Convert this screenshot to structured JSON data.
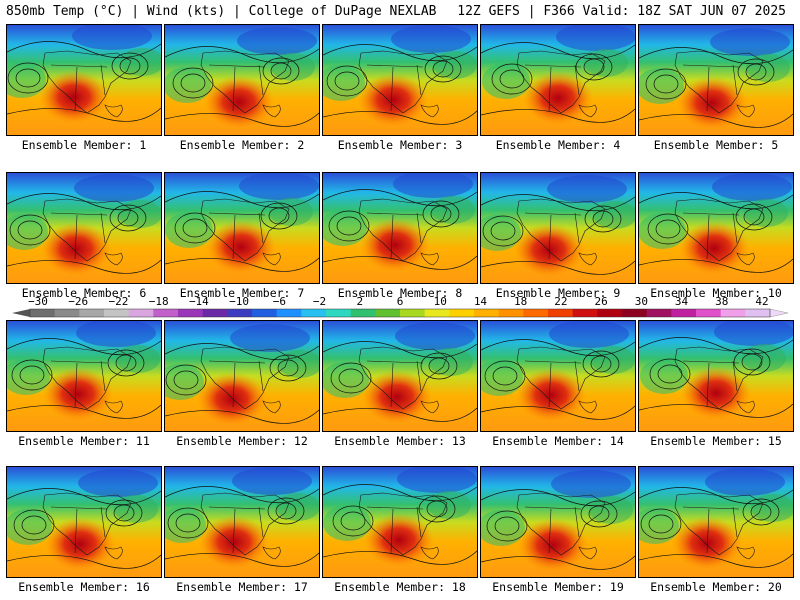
{
  "header": {
    "title": "850mb Temp (°C) | Wind (kts) | College of DuPage NEXLAB",
    "run": "12Z GEFS | F366 Valid: 18Z SAT JUN 07 2025"
  },
  "colorbar": {
    "labels": [
      "−30",
      "−26",
      "−22",
      "−18",
      "−14",
      "−10",
      "−6",
      "−2",
      "2",
      "6",
      "10",
      "14",
      "18",
      "22",
      "26",
      "30",
      "34",
      "38",
      "42"
    ],
    "colors": [
      "#6e6e6e",
      "#8a8a8a",
      "#a8a8a8",
      "#c4c4c4",
      "#d9a6e0",
      "#c060c8",
      "#9a36b8",
      "#6a2aa8",
      "#3c3cc0",
      "#2060e0",
      "#1e90ff",
      "#28c0f0",
      "#2ed8c0",
      "#30c070",
      "#60c030",
      "#a8d820",
      "#e8e820",
      "#ffd000",
      "#ffb000",
      "#ff9000",
      "#ff6a00",
      "#f04000",
      "#d01010",
      "#b00010",
      "#8c0020",
      "#a01060",
      "#c020a0",
      "#e050c8",
      "#f0a0e8",
      "#e0c0f0"
    ]
  },
  "panels": [
    {
      "label": "Ensemble Member: 1"
    },
    {
      "label": "Ensemble Member: 2"
    },
    {
      "label": "Ensemble Member: 3"
    },
    {
      "label": "Ensemble Member: 4"
    },
    {
      "label": "Ensemble Member: 5"
    },
    {
      "label": "Ensemble Member: 6"
    },
    {
      "label": "Ensemble Member: 7"
    },
    {
      "label": "Ensemble Member: 8"
    },
    {
      "label": "Ensemble Member: 9"
    },
    {
      "label": "Ensemble Member: 10"
    },
    {
      "label": "Ensemble Member: 11"
    },
    {
      "label": "Ensemble Member: 12"
    },
    {
      "label": "Ensemble Member: 13"
    },
    {
      "label": "Ensemble Member: 14"
    },
    {
      "label": "Ensemble Member: 15"
    },
    {
      "label": "Ensemble Member: 16"
    },
    {
      "label": "Ensemble Member: 17"
    },
    {
      "label": "Ensemble Member: 18"
    },
    {
      "label": "Ensemble Member: 19"
    },
    {
      "label": "Ensemble Member: 20"
    }
  ]
}
